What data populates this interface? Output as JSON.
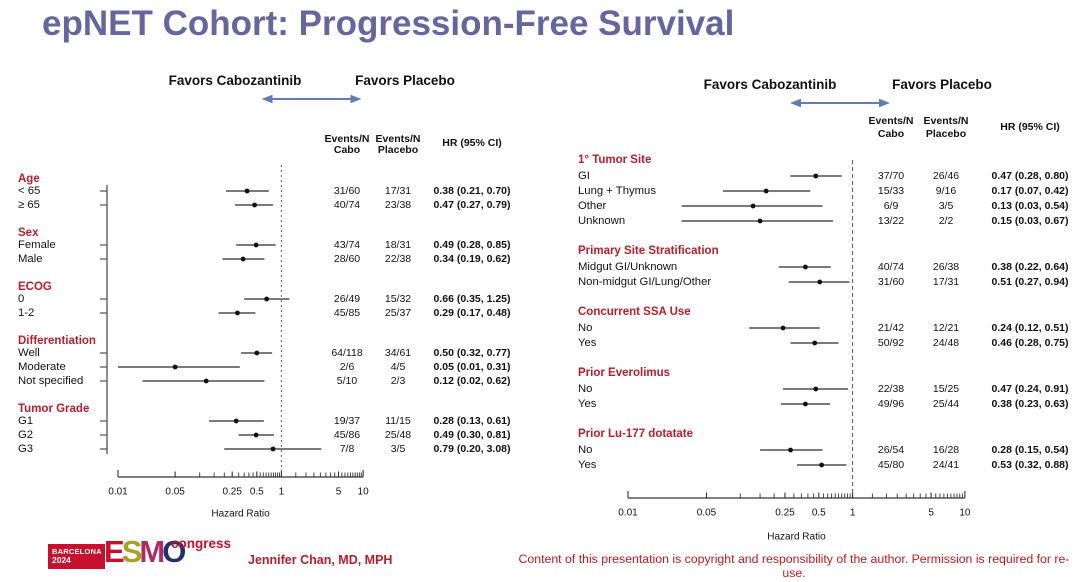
{
  "slide": {
    "title": "epNET Cohort: Progression-Free Survival",
    "presenter": "Jennifer Chan, MD, MPH",
    "copyright": "Content of this presentation is copyright and responsibility of the author. Permission is required for re-use.",
    "logo": {
      "city": "BARCELONA",
      "year": "2024",
      "letters": [
        "E",
        "S",
        "M",
        "O"
      ],
      "suffix": "congress"
    }
  },
  "colors": {
    "title": "#66669c",
    "accent_red": "#b51e2d",
    "footer_red": "#c2181f",
    "arrow_blue": "#5e7cb7",
    "line_dark": "#2b2b2b",
    "logo_red": "#c8102e",
    "logo_letters": [
      "#c8102e",
      "#a3a51f",
      "#b02a63",
      "#23306b"
    ]
  },
  "chart_data": [
    {
      "type": "forest",
      "id": "left",
      "favors_left": "Favors Cabozantinib",
      "favors_right": "Favors Placebo",
      "columns": [
        {
          "line1": "Events/N",
          "line2": "Cabo"
        },
        {
          "line1": "Events/N",
          "line2": "Placebo"
        },
        {
          "line1": "HR (95% CI)"
        }
      ],
      "xlabel": "Hazard Ratio",
      "xlim": [
        0.01,
        10
      ],
      "ref_line": 1,
      "xticks": [
        0.01,
        0.05,
        0.25,
        0.5,
        1,
        5,
        10
      ],
      "xtick_labels": [
        "0.01",
        "0.05",
        "0.25",
        "0.5",
        "1",
        "5",
        "10"
      ],
      "groups": [
        {
          "label": "Age",
          "items": [
            {
              "label": "< 65",
              "cabo": "31/60",
              "placebo": "17/31",
              "hr": 0.38,
              "lo": 0.21,
              "hi": 0.7,
              "hr_text": "0.38 (0.21, 0.70)"
            },
            {
              "label": "≥ 65",
              "cabo": "40/74",
              "placebo": "23/38",
              "hr": 0.47,
              "lo": 0.27,
              "hi": 0.79,
              "hr_text": "0.47 (0.27, 0.79)"
            }
          ]
        },
        {
          "label": "Sex",
          "items": [
            {
              "label": "Female",
              "cabo": "43/74",
              "placebo": "18/31",
              "hr": 0.49,
              "lo": 0.28,
              "hi": 0.85,
              "hr_text": "0.49 (0.28, 0.85)"
            },
            {
              "label": "Male",
              "cabo": "28/60",
              "placebo": "22/38",
              "hr": 0.34,
              "lo": 0.19,
              "hi": 0.62,
              "hr_text": "0.34 (0.19, 0.62)"
            }
          ]
        },
        {
          "label": "ECOG",
          "items": [
            {
              "label": "0",
              "cabo": "26/49",
              "placebo": "15/32",
              "hr": 0.66,
              "lo": 0.35,
              "hi": 1.25,
              "hr_text": "0.66 (0.35, 1.25)"
            },
            {
              "label": "1-2",
              "cabo": "45/85",
              "placebo": "25/37",
              "hr": 0.29,
              "lo": 0.17,
              "hi": 0.48,
              "hr_text": "0.29 (0.17, 0.48)"
            }
          ]
        },
        {
          "label": "Differentiation",
          "items": [
            {
              "label": "Well",
              "cabo": "64/118",
              "placebo": "34/61",
              "hr": 0.5,
              "lo": 0.32,
              "hi": 0.77,
              "hr_text": "0.50 (0.32, 0.77)"
            },
            {
              "label": "Moderate",
              "cabo": "2/6",
              "placebo": "4/5",
              "hr": 0.05,
              "lo": 0.01,
              "hi": 0.31,
              "hr_text": "0.05 (0.01, 0.31)"
            },
            {
              "label": "Not specified",
              "cabo": "5/10",
              "placebo": "2/3",
              "hr": 0.12,
              "lo": 0.02,
              "hi": 0.62,
              "hr_text": "0.12 (0.02, 0.62)"
            }
          ]
        },
        {
          "label": "Tumor Grade",
          "items": [
            {
              "label": "G1",
              "cabo": "19/37",
              "placebo": "11/15",
              "hr": 0.28,
              "lo": 0.13,
              "hi": 0.61,
              "hr_text": "0.28 (0.13, 0.61)"
            },
            {
              "label": "G2",
              "cabo": "45/86",
              "placebo": "25/48",
              "hr": 0.49,
              "lo": 0.3,
              "hi": 0.81,
              "hr_text": "0.49 (0.30, 0.81)"
            },
            {
              "label": "G3",
              "cabo": "7/8",
              "placebo": "3/5",
              "hr": 0.79,
              "lo": 0.2,
              "hi": 3.08,
              "hr_text": "0.79 (0.20, 3.08)"
            }
          ]
        }
      ]
    },
    {
      "type": "forest",
      "id": "right",
      "favors_left": "Favors Cabozantinib",
      "favors_right": "Favors Placebo",
      "columns": [
        {
          "line1": "Events/N",
          "line2": "Cabo"
        },
        {
          "line1": "Events/N",
          "line2": "Placebo"
        },
        {
          "line1": "HR (95% CI)"
        }
      ],
      "xlabel": "Hazard Ratio",
      "xlim": [
        0.01,
        10
      ],
      "ref_line": 1,
      "xticks": [
        0.01,
        0.05,
        0.25,
        0.5,
        1,
        5,
        10
      ],
      "xtick_labels": [
        "0.01",
        "0.05",
        "0.25",
        "0.5",
        "1",
        "5",
        "10"
      ],
      "groups": [
        {
          "label": "1° Tumor Site",
          "items": [
            {
              "label": "GI",
              "cabo": "37/70",
              "placebo": "26/46",
              "hr": 0.47,
              "lo": 0.28,
              "hi": 0.8,
              "hr_text": "0.47 (0.28, 0.80)"
            },
            {
              "label": "Lung + Thymus",
              "cabo": "15/33",
              "placebo": "9/16",
              "hr": 0.17,
              "lo": 0.07,
              "hi": 0.42,
              "hr_text": "0.17 (0.07, 0.42)"
            },
            {
              "label": "Other",
              "cabo": "6/9",
              "placebo": "3/5",
              "hr": 0.13,
              "lo": 0.03,
              "hi": 0.54,
              "hr_text": "0.13 (0.03, 0.54)"
            },
            {
              "label": "Unknown",
              "cabo": "13/22",
              "placebo": "2/2",
              "hr": 0.15,
              "lo": 0.03,
              "hi": 0.67,
              "hr_text": "0.15 (0.03, 0.67)"
            }
          ]
        },
        {
          "label": "Primary Site Stratification",
          "items": [
            {
              "label": "Midgut GI/Unknown",
              "cabo": "40/74",
              "placebo": "26/38",
              "hr": 0.38,
              "lo": 0.22,
              "hi": 0.64,
              "hr_text": "0.38 (0.22, 0.64)"
            },
            {
              "label": "Non-midgut GI/Lung/Other",
              "cabo": "31/60",
              "placebo": "17/31",
              "hr": 0.51,
              "lo": 0.27,
              "hi": 0.94,
              "hr_text": "0.51 (0.27, 0.94)"
            }
          ]
        },
        {
          "label": "Concurrent SSA Use",
          "items": [
            {
              "label": "No",
              "cabo": "21/42",
              "placebo": "12/21",
              "hr": 0.24,
              "lo": 0.12,
              "hi": 0.51,
              "hr_text": "0.24 (0.12, 0.51)"
            },
            {
              "label": "Yes",
              "cabo": "50/92",
              "placebo": "24/48",
              "hr": 0.46,
              "lo": 0.28,
              "hi": 0.75,
              "hr_text": "0.46 (0.28, 0.75)"
            }
          ]
        },
        {
          "label": "Prior Everolimus",
          "items": [
            {
              "label": "No",
              "cabo": "22/38",
              "placebo": "15/25",
              "hr": 0.47,
              "lo": 0.24,
              "hi": 0.91,
              "hr_text": "0.47 (0.24, 0.91)"
            },
            {
              "label": "Yes",
              "cabo": "49/96",
              "placebo": "25/44",
              "hr": 0.38,
              "lo": 0.23,
              "hi": 0.63,
              "hr_text": "0.38 (0.23, 0.63)"
            }
          ]
        },
        {
          "label": "Prior Lu-177 dotatate",
          "items": [
            {
              "label": "No",
              "cabo": "26/54",
              "placebo": "16/28",
              "hr": 0.28,
              "lo": 0.15,
              "hi": 0.54,
              "hr_text": "0.28 (0.15, 0.54)"
            },
            {
              "label": "Yes",
              "cabo": "45/80",
              "placebo": "24/41",
              "hr": 0.53,
              "lo": 0.32,
              "hi": 0.88,
              "hr_text": "0.53 (0.32, 0.88)"
            }
          ]
        }
      ]
    }
  ]
}
